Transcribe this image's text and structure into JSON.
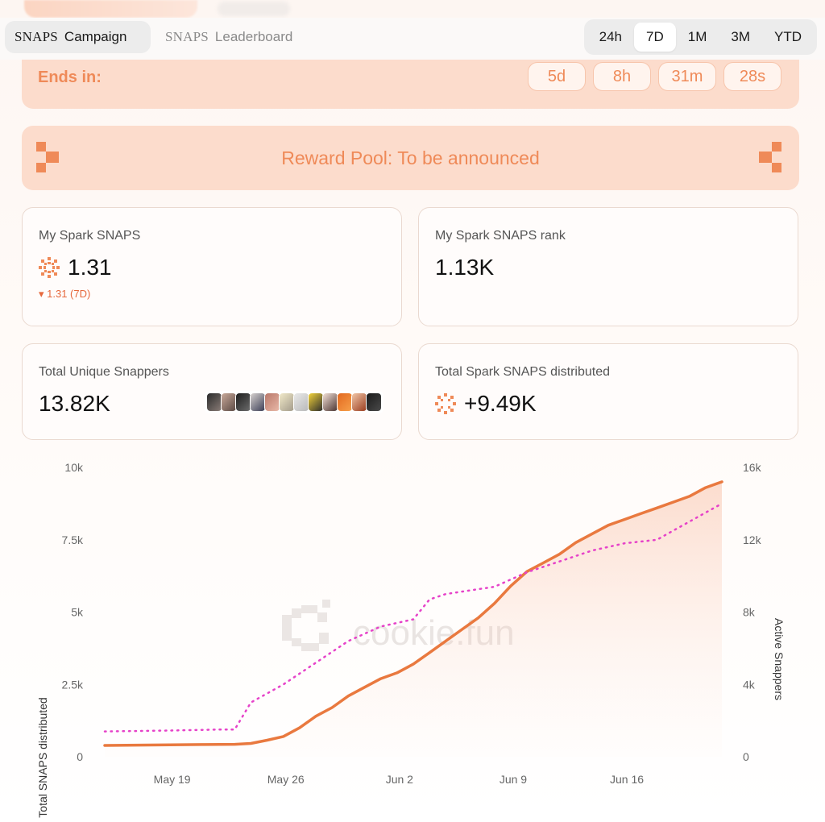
{
  "nav": {
    "snaps_word": "SNAPS",
    "tab_campaign": "Campaign",
    "tab_leaderboard": "Leaderboard",
    "time_ranges": [
      "24h",
      "7D",
      "1M",
      "3M",
      "YTD"
    ],
    "active_time_range": "7D"
  },
  "countdown": {
    "label": "Ends in:",
    "days": "5d",
    "hours": "8h",
    "minutes": "31m",
    "seconds": "28s"
  },
  "reward": {
    "text": "Reward Pool: To be announced"
  },
  "cards": {
    "my_snaps": {
      "title": "My Spark SNAPS",
      "value": "1.31",
      "delta": "▾ 1.31 (7D)"
    },
    "my_rank": {
      "title": "My Spark SNAPS rank",
      "value": "1.13K"
    },
    "unique_snappers": {
      "title": "Total Unique Snappers",
      "value": "13.82K"
    },
    "distributed": {
      "title": "Total Spark SNAPS distributed",
      "value": "+9.49K"
    }
  },
  "watermark": "cookie.fun",
  "colors": {
    "accent": "#ef8a58",
    "accent_line": "#e9793f",
    "dotted_line": "#e642c9",
    "banner_bg": "#fcdccc"
  },
  "chart_data": {
    "type": "line",
    "xlabel": "",
    "ylabel_left": "Total SNAPS distributed",
    "ylabel_right": "Active Snappers",
    "x_ticks": [
      "May 19",
      "May 26",
      "Jun 2",
      "Jun 9",
      "Jun 16"
    ],
    "y_left_ticks": [
      "0",
      "2.5k",
      "5k",
      "7.5k",
      "10k"
    ],
    "y_right_ticks": [
      "0",
      "4k",
      "8k",
      "12k",
      "16k"
    ],
    "ylim_left": [
      0,
      10000
    ],
    "ylim_right": [
      0,
      16000
    ],
    "series": [
      {
        "name": "Total SNAPS distributed",
        "axis": "left",
        "style": "solid",
        "x": [
          "May 15",
          "May 17",
          "May 19",
          "May 21",
          "May 23",
          "May 24",
          "May 25",
          "May 26",
          "May 27",
          "May 28",
          "May 29",
          "May 30",
          "May 31",
          "Jun 1",
          "Jun 2",
          "Jun 3",
          "Jun 4",
          "Jun 5",
          "Jun 6",
          "Jun 7",
          "Jun 8",
          "Jun 9",
          "Jun 10",
          "Jun 11",
          "Jun 12",
          "Jun 13",
          "Jun 14",
          "Jun 15",
          "Jun 16",
          "Jun 17",
          "Jun 18",
          "Jun 19",
          "Jun 20",
          "Jun 21",
          "Jun 22"
        ],
        "values": [
          390,
          400,
          410,
          420,
          430,
          460,
          570,
          700,
          1000,
          1400,
          1700,
          2100,
          2400,
          2700,
          2900,
          3200,
          3600,
          4000,
          4400,
          4800,
          5300,
          5900,
          6400,
          6700,
          7000,
          7400,
          7700,
          8000,
          8200,
          8400,
          8600,
          8800,
          9000,
          9300,
          9500
        ]
      },
      {
        "name": "Active Snappers",
        "axis": "right",
        "style": "dotted",
        "x": [
          "May 15",
          "May 19",
          "May 22",
          "May 23",
          "May 24",
          "May 26",
          "May 28",
          "May 30",
          "Jun 1",
          "Jun 3",
          "Jun 4",
          "Jun 5",
          "Jun 8",
          "Jun 10",
          "Jun 12",
          "Jun 14",
          "Jun 16",
          "Jun 17",
          "Jun 18",
          "Jun 19",
          "Jun 20",
          "Jun 21",
          "Jun 22"
        ],
        "values": [
          1400,
          1450,
          1500,
          1500,
          3000,
          4000,
          5200,
          6400,
          7200,
          7600,
          8700,
          9000,
          9400,
          10200,
          10800,
          11400,
          11800,
          11900,
          12000,
          12500,
          13000,
          13500,
          14000
        ]
      }
    ]
  }
}
